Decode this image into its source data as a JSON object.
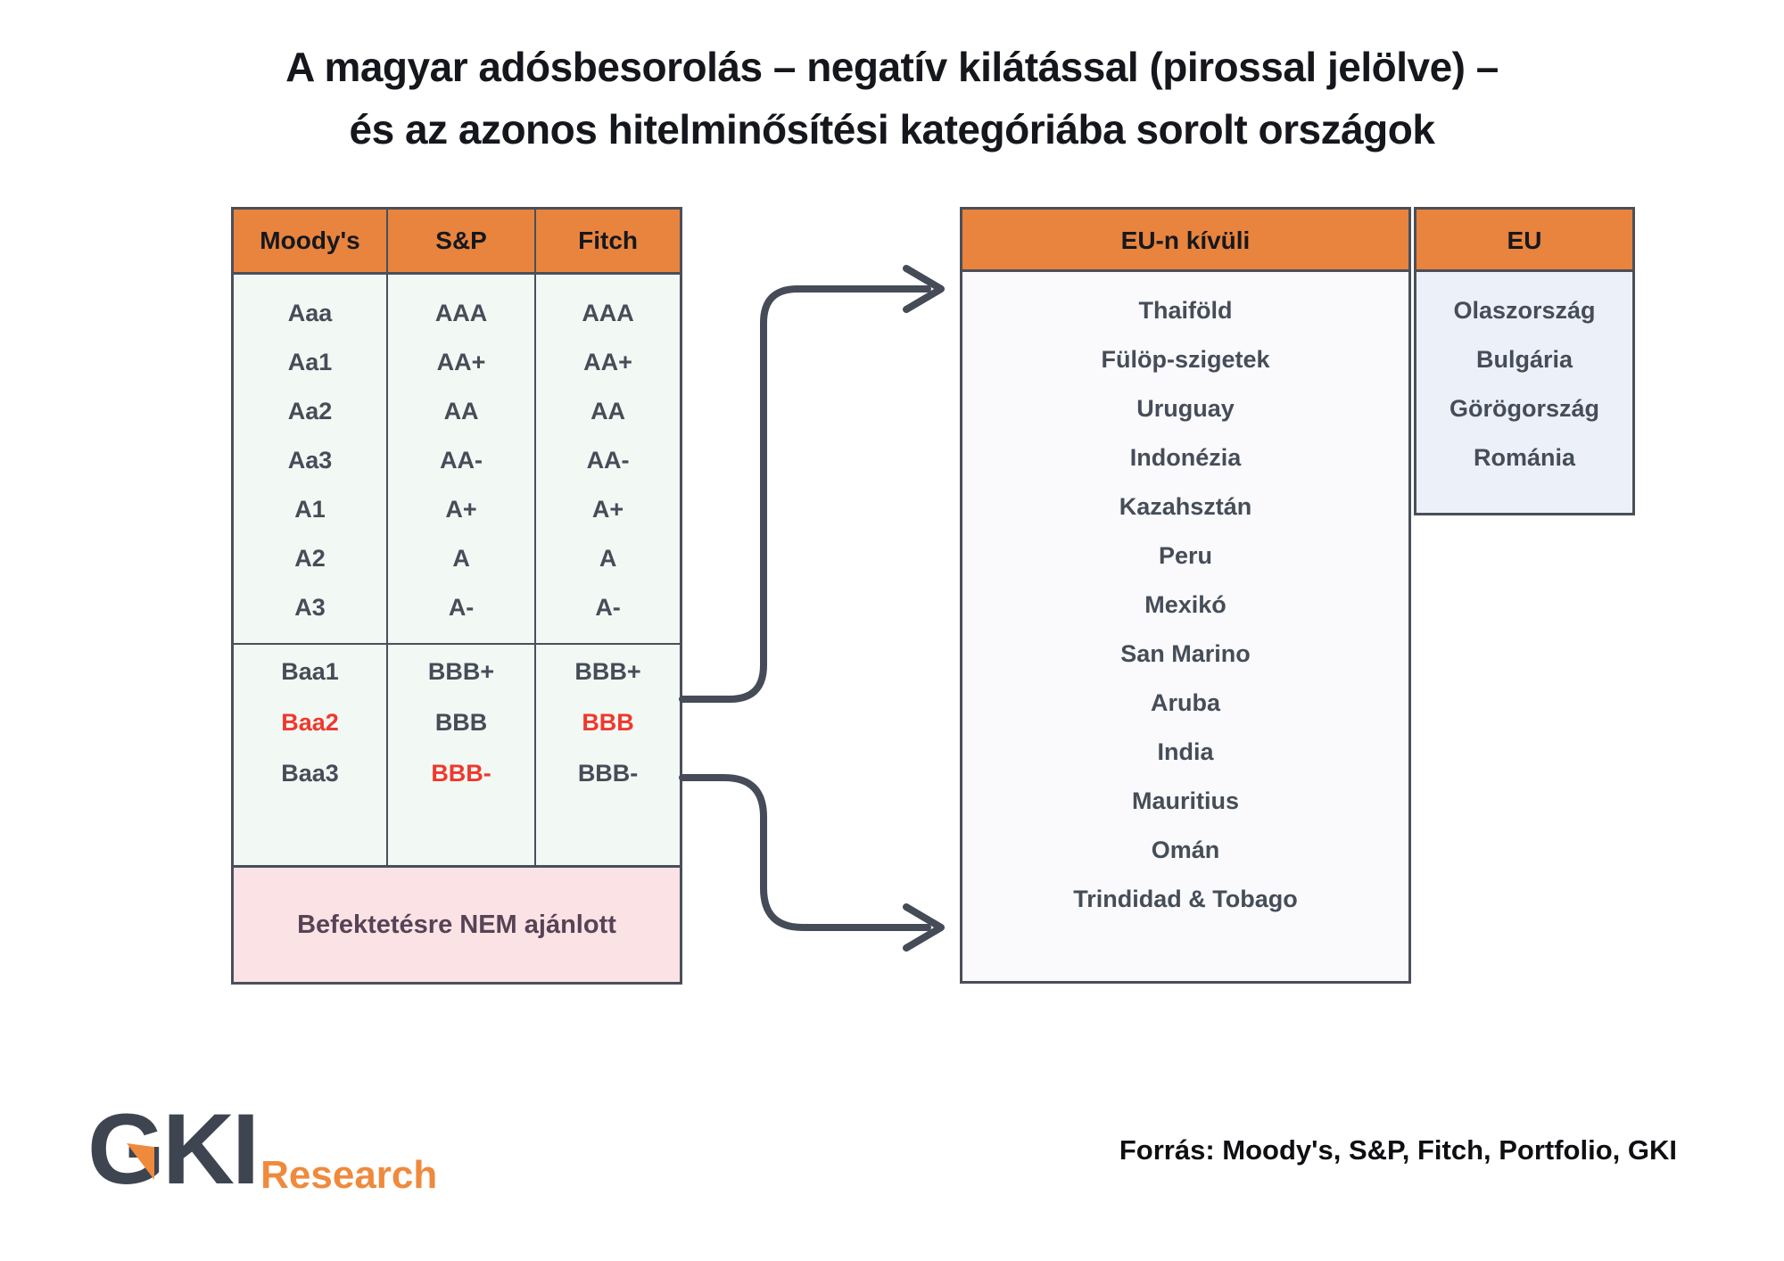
{
  "title": {
    "line1": "A magyar adósbesorolás – negatív kilátással (pirossal jelölve) –",
    "line2": "és az azonos hitelminősítési kategóriába sorolt országok"
  },
  "ratings_table": {
    "columns": [
      {
        "header": "Moody's",
        "upper": [
          "Aaa",
          "Aa1",
          "Aa2",
          "Aa3",
          "A1",
          "A2",
          "A3"
        ],
        "lower": [
          "Baa1",
          "Baa2",
          "Baa3"
        ],
        "negative_outlook": [
          "Baa2"
        ]
      },
      {
        "header": "S&P",
        "upper": [
          "AAA",
          "AA+",
          "AA",
          "AA-",
          "A+",
          "A",
          "A-"
        ],
        "lower": [
          "BBB+",
          "BBB",
          "BBB-"
        ],
        "negative_outlook": [
          "BBB-"
        ]
      },
      {
        "header": "Fitch",
        "upper": [
          "AAA",
          "AA+",
          "AA",
          "AA-",
          "A+",
          "A",
          "A-"
        ],
        "lower": [
          "BBB+",
          "BBB",
          "BBB-"
        ],
        "negative_outlook": [
          "BBB"
        ]
      }
    ],
    "not_recommended_label": "Befektetésre NEM ajánlott"
  },
  "country_tables": {
    "non_eu": {
      "header": "EU-n kívüli",
      "countries": [
        "Thaiföld",
        "Fülöp-szigetek",
        "Uruguay",
        "Indonézia",
        "Kazahsztán",
        "Peru",
        "Mexikó",
        "San Marino",
        "Aruba",
        "India",
        "Mauritius",
        "Omán",
        "Trindidad & Tobago"
      ]
    },
    "eu": {
      "header": "EU",
      "countries": [
        "Olaszország",
        "Bulgária",
        "Görögország",
        "Románia"
      ]
    }
  },
  "source": "Forrás: Moody's, S&P, Fitch, Portfolio, GKI",
  "logo": {
    "name": "GKI",
    "subtext": "Research"
  },
  "colors": {
    "accent_orange": "#e8843e",
    "negative_red": "#f0382e",
    "table_border": "#4a4f59",
    "arrow": "#454b57",
    "ratings_body_bg": "#f2f8f3",
    "non_eu_body_bg": "#faf9fc",
    "eu_body_bg": "#ecf1f9",
    "not_recommended_bg": "#fbe2e5",
    "not_recommended_text": "#574355",
    "body_text": "#454d58"
  }
}
